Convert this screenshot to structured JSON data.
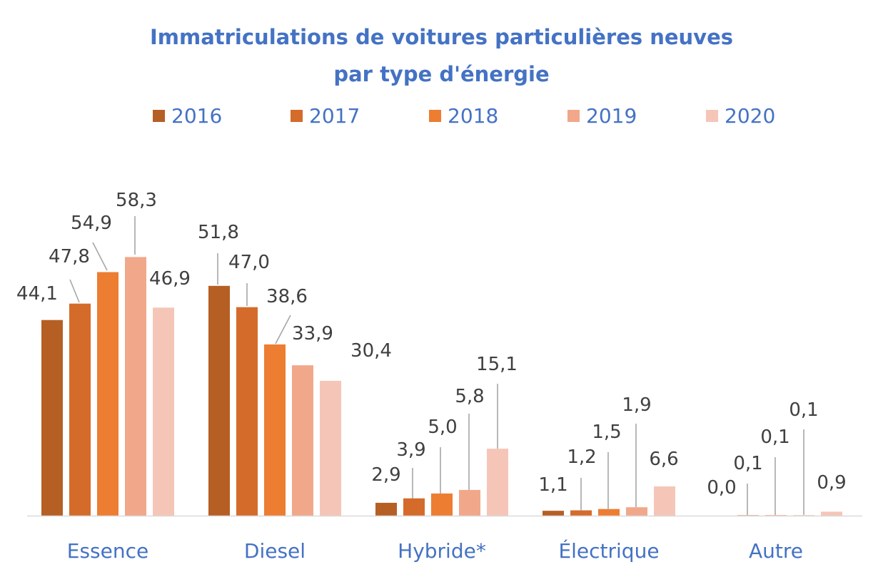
{
  "chart_data": {
    "type": "bar",
    "title": "Immatriculations de voitures particulières neuves",
    "subtitle": "par type d'énergie",
    "categories": [
      "Essence",
      "Diesel",
      "Hybride*",
      "Électrique",
      "Autre"
    ],
    "series": [
      {
        "name": "2016",
        "color": "#B65F24",
        "values": [
          44.1,
          51.8,
          2.9,
          1.1,
          0.0
        ],
        "labels": [
          "44,1",
          "51,8",
          "2,9",
          "1,1",
          "0,0"
        ]
      },
      {
        "name": "2017",
        "color": "#D46B2A",
        "values": [
          47.8,
          47.0,
          3.9,
          1.2,
          0.1
        ],
        "labels": [
          "47,8",
          "47,0",
          "3,9",
          "1,2",
          "0,1"
        ]
      },
      {
        "name": "2018",
        "color": "#ED7D31",
        "values": [
          54.9,
          38.6,
          5.0,
          1.5,
          0.1
        ],
        "labels": [
          "54,9",
          "38,6",
          "5,0",
          "1,5",
          "0,1"
        ]
      },
      {
        "name": "2019",
        "color": "#F1A88A",
        "values": [
          58.3,
          33.9,
          5.8,
          1.9,
          0.1
        ],
        "labels": [
          "58,3",
          "33,9",
          "5,8",
          "1,9",
          "0,1"
        ]
      },
      {
        "name": "2020",
        "color": "#F5C6B8",
        "values": [
          46.9,
          30.4,
          15.1,
          6.6,
          0.9
        ],
        "labels": [
          "46,9",
          "30,4",
          "15,1",
          "6,6",
          "0,9"
        ]
      }
    ],
    "legend_position": "top",
    "grid": false,
    "ylim": [
      0,
      75
    ]
  }
}
